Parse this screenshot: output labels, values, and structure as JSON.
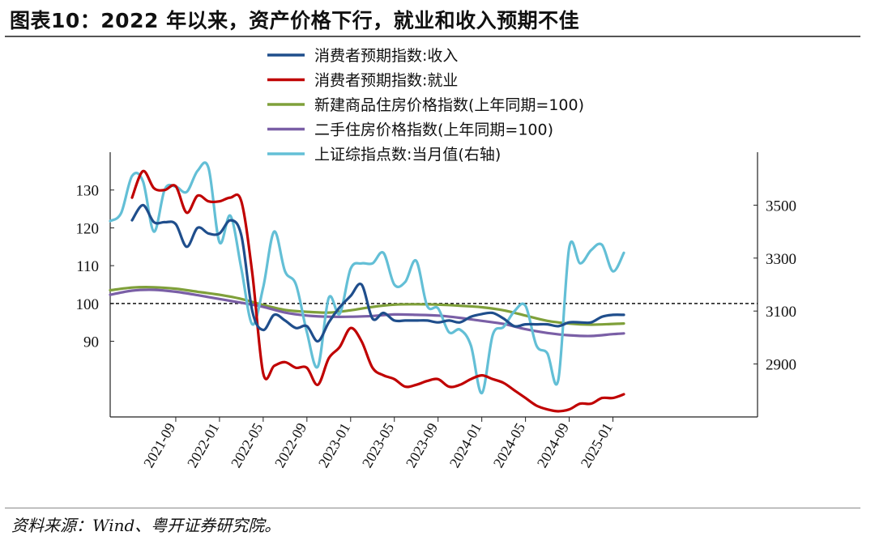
{
  "title": "图表10：2022 年以来，资产价格下行，就业和收入预期不佳",
  "source": "资料来源：Wind、粤开证券研究院。",
  "chart_data": {
    "type": "line",
    "left_axis": {
      "ylim": [
        70,
        140
      ],
      "ticks": [
        90,
        100,
        110,
        120,
        130
      ]
    },
    "right_axis": {
      "ylim": [
        2700,
        3700
      ],
      "ticks": [
        2900,
        3100,
        3300,
        3500
      ],
      "label": "右轴"
    },
    "x_ticks": [
      "2021-09",
      "2022-01",
      "2022-05",
      "2022-09",
      "2023-01",
      "2023-05",
      "2023-09",
      "2024-01",
      "2024-05",
      "2024-09",
      "2025-01"
    ],
    "reference_line": {
      "axis": "left",
      "y": 100,
      "style": "dashed"
    },
    "series": [
      {
        "name": "消费者预期指数:收入",
        "axis": "left",
        "color": "#1f4e8c",
        "x": [
          "2021-05",
          "2021-06",
          "2021-07",
          "2021-08",
          "2021-09",
          "2021-10",
          "2021-11",
          "2021-12",
          "2022-01",
          "2022-02",
          "2022-03",
          "2022-04",
          "2022-05",
          "2022-06",
          "2022-07",
          "2022-08",
          "2022-09",
          "2022-10",
          "2022-11",
          "2022-12",
          "2023-01",
          "2023-02",
          "2023-03",
          "2023-04",
          "2023-05",
          "2023-06",
          "2023-07",
          "2023-08",
          "2023-09",
          "2023-10",
          "2023-11",
          "2023-12",
          "2024-01",
          "2024-02",
          "2024-03",
          "2024-04",
          "2024-05",
          "2024-06",
          "2024-07",
          "2024-08",
          "2024-09",
          "2024-10",
          "2024-11",
          "2024-12",
          "2025-01",
          "2025-02"
        ],
        "values": [
          122,
          126,
          121.5,
          121.5,
          121,
          115,
          120,
          118.5,
          118.5,
          122,
          118,
          98,
          93,
          97,
          95.5,
          93.5,
          94,
          90,
          95,
          99,
          102,
          105,
          96,
          97.5,
          95.5,
          95.5,
          95.5,
          95.5,
          95,
          95.5,
          95,
          96.5,
          97.2,
          97.5,
          96,
          94,
          94.5,
          94.5,
          94.5,
          94,
          95,
          95,
          95,
          96.5,
          97,
          97
        ]
      },
      {
        "name": "消费者预期指数:就业",
        "axis": "left",
        "color": "#c00000",
        "x": [
          "2021-05",
          "2021-06",
          "2021-07",
          "2021-08",
          "2021-09",
          "2021-10",
          "2021-11",
          "2021-12",
          "2022-01",
          "2022-02",
          "2022-03",
          "2022-04",
          "2022-05",
          "2022-06",
          "2022-07",
          "2022-08",
          "2022-09",
          "2022-10",
          "2022-11",
          "2022-12",
          "2023-01",
          "2023-02",
          "2023-03",
          "2023-04",
          "2023-05",
          "2023-06",
          "2023-07",
          "2023-08",
          "2023-09",
          "2023-10",
          "2023-11",
          "2023-12",
          "2024-01",
          "2024-02",
          "2024-03",
          "2024-04",
          "2024-05",
          "2024-06",
          "2024-07",
          "2024-08",
          "2024-09",
          "2024-10",
          "2024-11",
          "2024-12",
          "2025-01",
          "2025-02"
        ],
        "values": [
          128,
          135,
          130.5,
          130,
          131,
          124,
          128.5,
          127,
          127,
          128,
          127,
          108,
          81.5,
          83.5,
          84.5,
          83,
          83,
          78.5,
          85.5,
          88.5,
          93.5,
          90,
          83,
          81,
          80,
          78,
          78.5,
          79.5,
          80,
          78,
          78.5,
          80,
          81,
          80,
          79,
          77,
          75,
          73,
          72,
          71.5,
          72,
          73.5,
          73.5,
          75,
          75,
          76
        ]
      },
      {
        "name": "新建商品住房价格指数(上年同期=100)",
        "axis": "left",
        "color": "#7fa03a",
        "x": [
          "2021-03",
          "2021-05",
          "2021-07",
          "2021-09",
          "2021-11",
          "2022-01",
          "2022-03",
          "2022-05",
          "2022-07",
          "2022-09",
          "2022-11",
          "2023-01",
          "2023-03",
          "2023-05",
          "2023-07",
          "2023-09",
          "2023-11",
          "2024-01",
          "2024-03",
          "2024-05",
          "2024-07",
          "2024-09",
          "2024-11",
          "2025-01",
          "2025-02"
        ],
        "values": [
          103.5,
          104.2,
          104.3,
          103.9,
          103.1,
          102.3,
          101.2,
          99.6,
          98.3,
          97.8,
          97.6,
          98.2,
          99.1,
          99.7,
          99.8,
          99.7,
          99.4,
          99.0,
          98.2,
          96.8,
          95.4,
          94.7,
          94.4,
          94.6,
          94.7
        ]
      },
      {
        "name": "二手住房价格指数(上年同期=100)",
        "axis": "left",
        "color": "#7a5fa6",
        "x": [
          "2021-03",
          "2021-05",
          "2021-07",
          "2021-09",
          "2021-11",
          "2022-01",
          "2022-03",
          "2022-05",
          "2022-07",
          "2022-09",
          "2022-11",
          "2023-01",
          "2023-03",
          "2023-05",
          "2023-07",
          "2023-09",
          "2023-11",
          "2024-01",
          "2024-03",
          "2024-05",
          "2024-07",
          "2024-09",
          "2024-11",
          "2025-01",
          "2025-02"
        ],
        "values": [
          102.3,
          103.4,
          103.6,
          103.1,
          102.2,
          101.2,
          100.2,
          99.1,
          97.6,
          96.8,
          96.5,
          96.5,
          96.7,
          97.1,
          97.0,
          96.8,
          96.2,
          95.4,
          94.6,
          93.2,
          92.2,
          91.6,
          91.4,
          91.9,
          92.1
        ]
      },
      {
        "name": "上证综指点数:当月值(右轴)",
        "axis": "right",
        "color": "#63bfd6",
        "x": [
          "2021-03",
          "2021-04",
          "2021-05",
          "2021-06",
          "2021-07",
          "2021-08",
          "2021-09",
          "2021-10",
          "2021-11",
          "2021-12",
          "2022-01",
          "2022-02",
          "2022-03",
          "2022-04",
          "2022-05",
          "2022-06",
          "2022-07",
          "2022-08",
          "2022-09",
          "2022-10",
          "2022-11",
          "2022-12",
          "2023-01",
          "2023-02",
          "2023-03",
          "2023-04",
          "2023-05",
          "2023-06",
          "2023-07",
          "2023-08",
          "2023-09",
          "2023-10",
          "2023-11",
          "2023-12",
          "2024-01",
          "2024-02",
          "2024-03",
          "2024-04",
          "2024-05",
          "2024-06",
          "2024-07",
          "2024-08",
          "2024-09",
          "2024-10",
          "2024-11",
          "2024-12",
          "2025-01",
          "2025-02"
        ],
        "values": [
          3440,
          3470,
          3610,
          3590,
          3400,
          3560,
          3570,
          3550,
          3630,
          3640,
          3360,
          3460,
          3260,
          3050,
          3190,
          3400,
          3250,
          3200,
          3020,
          2890,
          3150,
          3090,
          3260,
          3280,
          3280,
          3320,
          3200,
          3210,
          3290,
          3120,
          3110,
          3020,
          3030,
          2970,
          2790,
          3010,
          3040,
          3100,
          3120,
          2970,
          2940,
          2840,
          3340,
          3280,
          3330,
          3350,
          3250,
          3320
        ]
      }
    ]
  }
}
